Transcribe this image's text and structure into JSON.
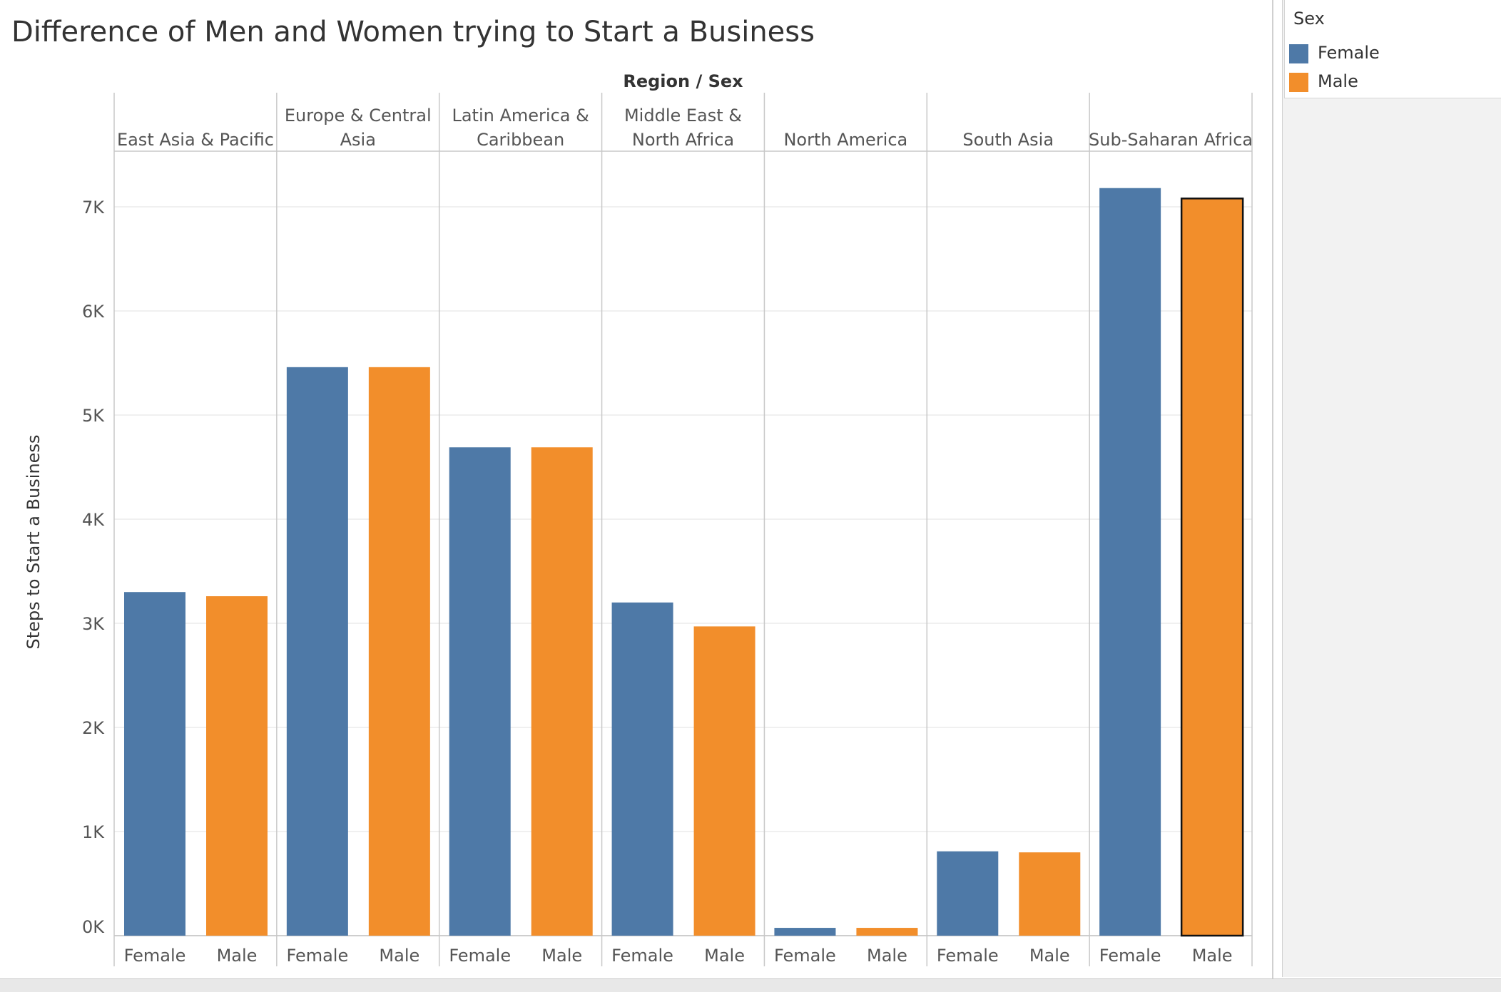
{
  "title": "Difference of Men and Women trying to Start a Business",
  "colors": {
    "female": "#4e79a7",
    "male": "#f28e2b",
    "grid": "#ebebeb",
    "divider": "#c8c8c8",
    "text": "#555555"
  },
  "legend": {
    "title": "Sex",
    "items": [
      {
        "label": "Female",
        "color": "#4e79a7"
      },
      {
        "label": "Male",
        "color": "#f28e2b"
      }
    ]
  },
  "chart_data": {
    "type": "bar",
    "title": "Difference of Men and Women trying to Start a Business",
    "column_header": "Region / Sex",
    "ylabel": "Steps to Start a Business",
    "ylim": [
      0,
      7500
    ],
    "yticks": [
      0,
      1000,
      2000,
      3000,
      4000,
      5000,
      6000,
      7000
    ],
    "ytick_labels": [
      "0K",
      "1K",
      "2K",
      "3K",
      "4K",
      "5K",
      "6K",
      "7K"
    ],
    "grid": true,
    "legend_position": "top-right",
    "series_names": [
      "Female",
      "Male"
    ],
    "regions": [
      {
        "name": "East Asia & Pacific",
        "label_lines": [
          "East Asia & Pacific"
        ],
        "values": [
          3300,
          3260
        ]
      },
      {
        "name": "Europe & Central Asia",
        "label_lines": [
          "Europe & Central",
          "Asia"
        ],
        "values": [
          5460,
          5460
        ]
      },
      {
        "name": "Latin America & Caribbean",
        "label_lines": [
          "Latin America &",
          "Caribbean"
        ],
        "values": [
          4690,
          4690
        ]
      },
      {
        "name": "Middle East & North Africa",
        "label_lines": [
          "Middle East &",
          "North Africa"
        ],
        "values": [
          3200,
          2970
        ]
      },
      {
        "name": "North America",
        "label_lines": [
          "North America"
        ],
        "values": [
          75,
          75
        ]
      },
      {
        "name": "South Asia",
        "label_lines": [
          "South Asia"
        ],
        "values": [
          810,
          800
        ]
      },
      {
        "name": "Sub-Saharan Africa",
        "label_lines": [
          "Sub-Saharan Africa"
        ],
        "values": [
          7180,
          7080
        ]
      }
    ]
  }
}
